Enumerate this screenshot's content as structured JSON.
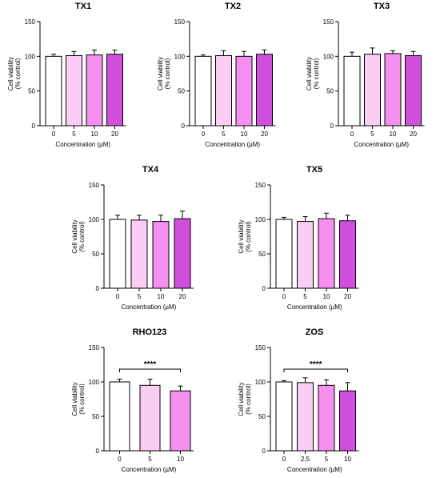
{
  "colors": {
    "bar_0": "#ffffff",
    "bar_1": "#fccdf4",
    "bar_2": "#f58ff0",
    "bar_3": "#cf4fdc",
    "stroke": "#000000"
  },
  "chart_data": [
    {
      "type": "bar",
      "title": "TX1",
      "xlabel": "Concentration (µM)",
      "ylabel": [
        "Cell viability",
        "(% control)"
      ],
      "categories": [
        "0",
        "5",
        "10",
        "20"
      ],
      "values": [
        100,
        101,
        102,
        103
      ],
      "errors": [
        3,
        6,
        7,
        6
      ],
      "ylim": [
        0,
        150
      ],
      "yticks": [
        0,
        50,
        100,
        150
      ],
      "annotation": ""
    },
    {
      "type": "bar",
      "title": "TX2",
      "xlabel": "Concentration (µM)",
      "ylabel": [
        "Cell viability",
        "(% control)"
      ],
      "categories": [
        "0",
        "5",
        "10",
        "20"
      ],
      "values": [
        100,
        101,
        100,
        103
      ],
      "errors": [
        2,
        7,
        7,
        6
      ],
      "ylim": [
        0,
        150
      ],
      "yticks": [
        0,
        50,
        100,
        150
      ],
      "annotation": ""
    },
    {
      "type": "bar",
      "title": "TX3",
      "xlabel": "Concentration (µM)",
      "ylabel": [
        "Cell viability",
        "(% control)"
      ],
      "categories": [
        "0",
        "5",
        "10",
        "20"
      ],
      "values": [
        100,
        103,
        104,
        101
      ],
      "errors": [
        6,
        9,
        4,
        6
      ],
      "ylim": [
        0,
        150
      ],
      "yticks": [
        0,
        50,
        100,
        150
      ],
      "annotation": ""
    },
    {
      "type": "bar",
      "title": "TX4",
      "xlabel": "Concentration (µM)",
      "ylabel": [
        "Cell viability",
        "(% control)"
      ],
      "categories": [
        "0",
        "5",
        "10",
        "20"
      ],
      "values": [
        100,
        99,
        97,
        101
      ],
      "errors": [
        6,
        7,
        9,
        11
      ],
      "ylim": [
        0,
        150
      ],
      "yticks": [
        0,
        50,
        100,
        150
      ],
      "annotation": ""
    },
    {
      "type": "bar",
      "title": "TX5",
      "xlabel": "Concentration (µM)",
      "ylabel": [
        "Cell viability",
        "(% control)"
      ],
      "categories": [
        "0",
        "5",
        "10",
        "20"
      ],
      "values": [
        100,
        97,
        101,
        98
      ],
      "errors": [
        3,
        7,
        8,
        8
      ],
      "ylim": [
        0,
        150
      ],
      "yticks": [
        0,
        50,
        100,
        150
      ],
      "annotation": ""
    },
    {
      "type": "bar",
      "title": "RHO123",
      "xlabel": "Concentration (µM)",
      "ylabel": [
        "Cell viability",
        "(% control)"
      ],
      "categories": [
        "0",
        "5",
        "10"
      ],
      "values": [
        100,
        95,
        87
      ],
      "errors": [
        4,
        9,
        7
      ],
      "ylim": [
        0,
        150
      ],
      "yticks": [
        0,
        50,
        100,
        150
      ],
      "annotation": "****"
    },
    {
      "type": "bar",
      "title": "ZOS",
      "xlabel": "Concentration (µM)",
      "ylabel": [
        "Cell viability",
        "(% control)"
      ],
      "categories": [
        "0",
        "2,5",
        "5",
        "10"
      ],
      "values": [
        100,
        99,
        95,
        87
      ],
      "errors": [
        2,
        7,
        8,
        12
      ],
      "ylim": [
        0,
        150
      ],
      "yticks": [
        0,
        50,
        100,
        150
      ],
      "annotation": "****"
    }
  ]
}
